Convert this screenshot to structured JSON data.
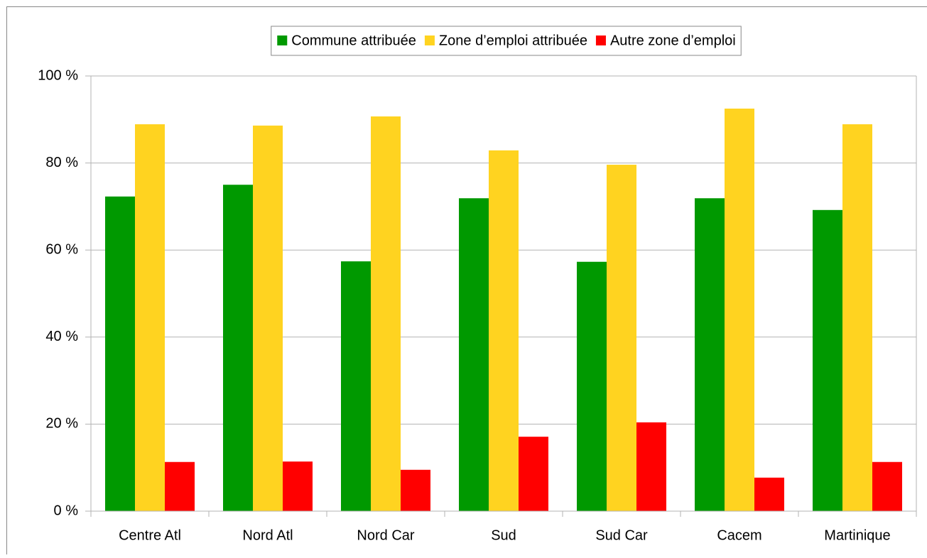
{
  "chart_data": {
    "type": "bar",
    "categories": [
      "Centre Atl",
      "Nord Atl",
      "Nord Car",
      "Sud",
      "Sud Car",
      "Cacem",
      "Martinique"
    ],
    "series": [
      {
        "name": "Commune attribuée",
        "color": "#009900",
        "values": [
          72.3,
          75.0,
          57.4,
          71.9,
          57.3,
          71.9,
          69.2
        ]
      },
      {
        "name": "Zone d’emploi attribuée",
        "color": "#ffd320",
        "values": [
          88.9,
          88.6,
          90.7,
          82.9,
          79.6,
          92.5,
          88.9
        ]
      },
      {
        "name": "Autre zone d’emploi",
        "color": "#ff0000",
        "values": [
          11.3,
          11.4,
          9.5,
          17.1,
          20.4,
          7.7,
          11.3
        ]
      }
    ],
    "ylim": [
      0,
      100
    ],
    "yticks": [
      {
        "value": 0,
        "label": "0 %"
      },
      {
        "value": 20,
        "label": "20 %"
      },
      {
        "value": 40,
        "label": "40 %"
      },
      {
        "value": 60,
        "label": "60 %"
      },
      {
        "value": 80,
        "label": "80 %"
      },
      {
        "value": 100,
        "label": "100 %"
      }
    ],
    "grid": true,
    "legend": "top"
  }
}
